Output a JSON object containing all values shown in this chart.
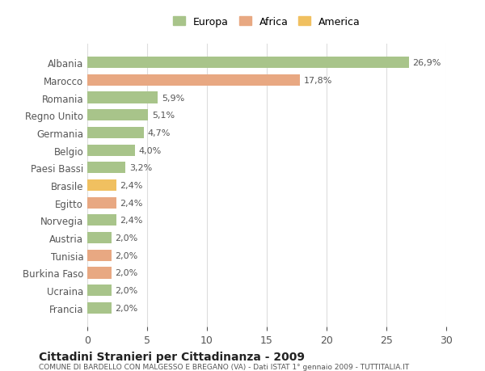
{
  "categories": [
    "Albania",
    "Marocco",
    "Romania",
    "Regno Unito",
    "Germania",
    "Belgio",
    "Paesi Bassi",
    "Brasile",
    "Egitto",
    "Norvegia",
    "Austria",
    "Tunisia",
    "Burkina Faso",
    "Ucraina",
    "Francia"
  ],
  "values": [
    26.9,
    17.8,
    5.9,
    5.1,
    4.7,
    4.0,
    3.2,
    2.4,
    2.4,
    2.4,
    2.0,
    2.0,
    2.0,
    2.0,
    2.0
  ],
  "labels": [
    "26,9%",
    "17,8%",
    "5,9%",
    "5,1%",
    "4,7%",
    "4,0%",
    "3,2%",
    "2,4%",
    "2,4%",
    "2,4%",
    "2,0%",
    "2,0%",
    "2,0%",
    "2,0%",
    "2,0%"
  ],
  "colors": [
    "#a8c48a",
    "#e8a882",
    "#a8c48a",
    "#a8c48a",
    "#a8c48a",
    "#a8c48a",
    "#a8c48a",
    "#f0c060",
    "#e8a882",
    "#a8c48a",
    "#a8c48a",
    "#e8a882",
    "#e8a882",
    "#a8c48a",
    "#a8c48a"
  ],
  "legend": [
    {
      "label": "Europa",
      "color": "#a8c48a"
    },
    {
      "label": "Africa",
      "color": "#e8a882"
    },
    {
      "label": "America",
      "color": "#f0c060"
    }
  ],
  "title": "Cittadini Stranieri per Cittadinanza - 2009",
  "subtitle": "COMUNE DI BARDELLO CON MALGESSO E BREGANO (VA) - Dati ISTAT 1° gennaio 2009 - TUTTITALIA.IT",
  "xlim": [
    0,
    30
  ],
  "xticks": [
    0,
    5,
    10,
    15,
    20,
    25,
    30
  ],
  "background_color": "#ffffff",
  "grid_color": "#dddddd",
  "bar_height": 0.65,
  "text_color": "#555555",
  "title_color": "#222222",
  "subtitle_color": "#555555"
}
